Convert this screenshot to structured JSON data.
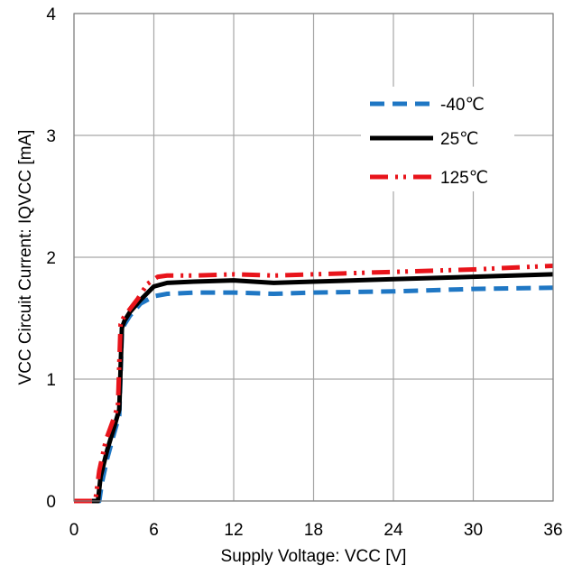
{
  "chart_data": {
    "type": "line",
    "title": "",
    "xlabel": "Supply Voltage: VCC [V]",
    "ylabel": "VCC Circuit Current: IQVCC [mA]",
    "xlim": [
      0,
      36
    ],
    "ylim": [
      0,
      4
    ],
    "x_ticks": [
      "0",
      "6",
      "12",
      "18",
      "24",
      "30",
      "36"
    ],
    "y_ticks": [
      "0",
      "1",
      "2",
      "3",
      "4"
    ],
    "grid": true,
    "legend_position": "top-right",
    "series": [
      {
        "name": "-40℃",
        "color": "#1f77c4",
        "dash": "long-dash",
        "x": [
          0,
          1.9,
          2.1,
          2.5,
          3.0,
          3.4,
          3.6,
          3.8,
          4.2,
          5.0,
          6.0,
          7.0,
          9.0,
          12.0,
          15.0,
          18.0,
          24.0,
          30.0,
          36.0
        ],
        "y": [
          0,
          0,
          0.15,
          0.35,
          0.55,
          0.7,
          1.38,
          1.45,
          1.52,
          1.62,
          1.68,
          1.7,
          1.71,
          1.71,
          1.7,
          1.71,
          1.72,
          1.74,
          1.75
        ]
      },
      {
        "name": "25℃",
        "color": "#000000",
        "dash": "solid",
        "x": [
          0,
          1.8,
          2.0,
          2.5,
          3.0,
          3.4,
          3.6,
          3.8,
          4.2,
          5.0,
          6.0,
          7.0,
          9.0,
          12.0,
          15.0,
          18.0,
          24.0,
          30.0,
          36.0
        ],
        "y": [
          0,
          0,
          0.2,
          0.42,
          0.6,
          0.75,
          1.42,
          1.48,
          1.55,
          1.65,
          1.76,
          1.79,
          1.8,
          1.81,
          1.79,
          1.8,
          1.82,
          1.84,
          1.86
        ]
      },
      {
        "name": "125℃",
        "color": "#e8141b",
        "dash": "dash-dot-dot",
        "x": [
          0,
          1.6,
          1.9,
          2.4,
          2.9,
          3.3,
          3.5,
          3.7,
          4.1,
          4.8,
          5.5,
          6.3,
          7.0,
          9.0,
          12.0,
          15.0,
          18.0,
          24.0,
          30.0,
          36.0
        ],
        "y": [
          0,
          0,
          0.25,
          0.5,
          0.65,
          0.78,
          1.45,
          1.5,
          1.56,
          1.66,
          1.78,
          1.84,
          1.85,
          1.85,
          1.86,
          1.85,
          1.86,
          1.88,
          1.9,
          1.93
        ]
      }
    ]
  }
}
